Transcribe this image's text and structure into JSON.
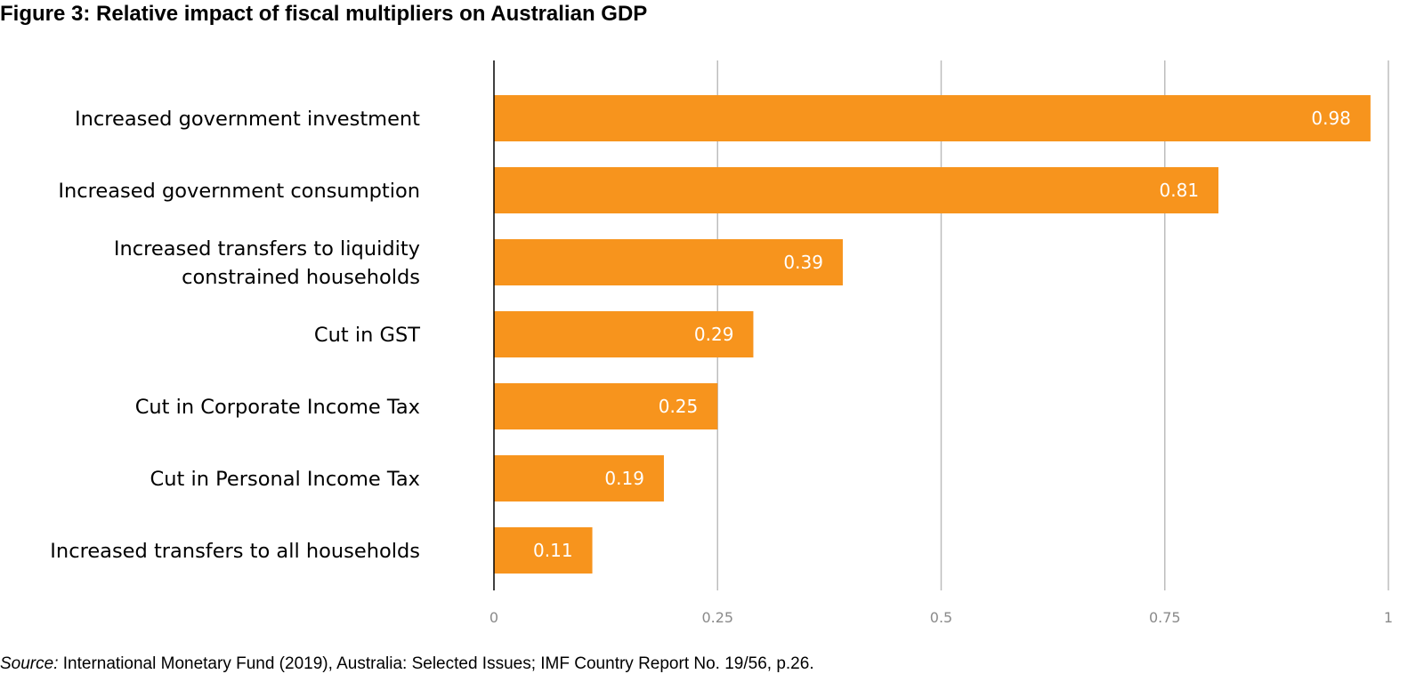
{
  "title": "Figure 3: Relative impact of fiscal multipliers on Australian GDP",
  "source": {
    "prefix": "Source:",
    "text": " International Monetary Fund (2019), Australia: Selected Issues; IMF Country Report No. 19/56, p.26."
  },
  "colors": {
    "bar": "#f7941d",
    "grid": "#bdbdbd",
    "axis": "#000000"
  },
  "chart_data": {
    "type": "bar",
    "orientation": "horizontal",
    "title": "Figure 3: Relative impact of fiscal multipliers on Australian GDP",
    "xlabel": "",
    "ylabel": "",
    "xlim": [
      0,
      1
    ],
    "xticks": [
      0,
      0.25,
      0.5,
      0.75,
      1
    ],
    "xtick_labels": [
      "0",
      "0.25",
      "0.5",
      "0.75",
      "1"
    ],
    "grid": true,
    "categories": [
      [
        "Increased government investment"
      ],
      [
        "Increased government consumption"
      ],
      [
        "Increased transfers to liquidity",
        "constrained households"
      ],
      [
        "Cut in GST"
      ],
      [
        "Cut in Corporate Income Tax"
      ],
      [
        "Cut in Personal Income Tax"
      ],
      [
        "Increased transfers to all households"
      ]
    ],
    "values": [
      0.98,
      0.81,
      0.39,
      0.29,
      0.25,
      0.19,
      0.11
    ],
    "value_labels": [
      "0.98",
      "0.81",
      "0.39",
      "0.29",
      "0.25",
      "0.19",
      "0.11"
    ]
  }
}
